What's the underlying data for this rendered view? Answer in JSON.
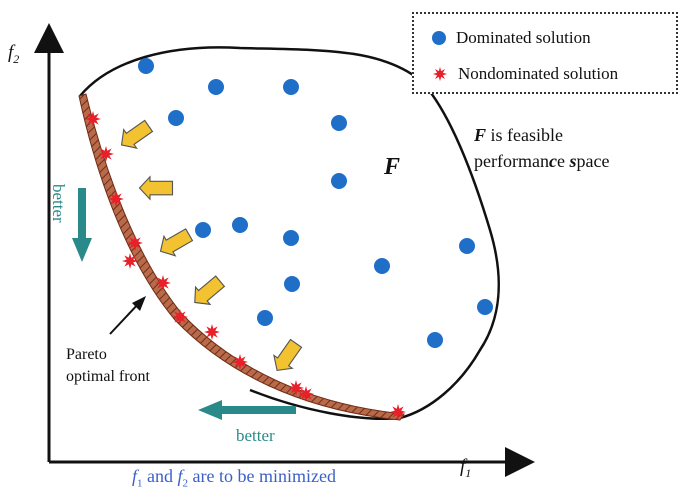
{
  "legend": {
    "dominated_label": "Dominated solution",
    "nondominated_label": "Nondominated solution"
  },
  "axes": {
    "y_label_main": "f",
    "y_label_sub": "2",
    "x_label_main": "f",
    "x_label_sub": "1"
  },
  "labels": {
    "feasible_symbol": "F",
    "feasible_desc_line1_pre": "F",
    "feasible_desc_line1_post": " is feasible",
    "feasible_desc_line2_a": "performan",
    "feasible_desc_line2_b": "c",
    "feasible_desc_line2_c": "e ",
    "feasible_desc_line2_d": "s",
    "feasible_desc_line2_e": "pace",
    "better_vertical": "better",
    "better_horizontal": "better",
    "pareto_line1": "Pareto",
    "pareto_line2": "optimal front",
    "bottom_f1": "f",
    "bottom_f1_sub": "1",
    "bottom_and": " and ",
    "bottom_f2": "f",
    "bottom_f2_sub": "2",
    "bottom_rest": " are to be minimized"
  },
  "colors": {
    "dominated": "#1f6fc9",
    "nondominated": "#e8202a",
    "arrow_yellow": "#f2c230",
    "better_arrow": "#2a8a8a",
    "front_fill": "#8b4a2e",
    "bottom_text": "#3a5fc8"
  }
}
